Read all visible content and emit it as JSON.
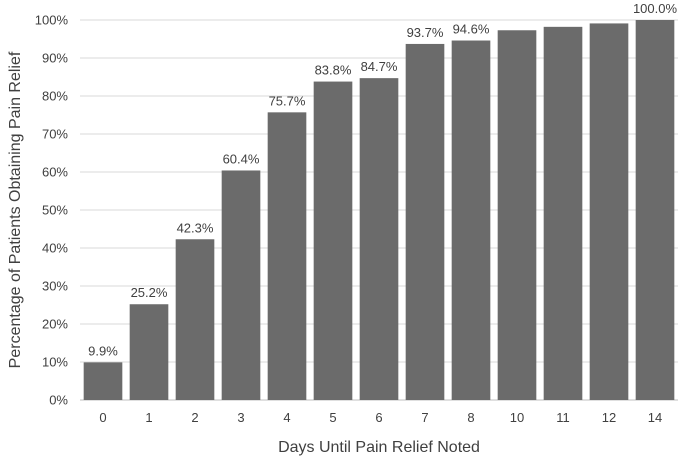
{
  "chart_data": {
    "type": "bar",
    "xlabel": "Days Until Pain Relief Noted",
    "ylabel": "Percentage of Patients Obtaining Pain Relief",
    "categories": [
      "0",
      "1",
      "2",
      "3",
      "4",
      "5",
      "6",
      "7",
      "8",
      "10",
      "11",
      "12",
      "14"
    ],
    "values": [
      9.9,
      25.2,
      42.3,
      60.4,
      75.7,
      83.8,
      84.7,
      93.7,
      94.6,
      97.3,
      98.2,
      99.1,
      100.0
    ],
    "data_labels": [
      "9.9%",
      "25.2%",
      "42.3%",
      "60.4%",
      "75.7%",
      "83.8%",
      "84.7%",
      "93.7%",
      "94.6%",
      "",
      "",
      "",
      "100.0%"
    ],
    "ylim": [
      0,
      100
    ],
    "yticks": [
      "0%",
      "10%",
      "20%",
      "30%",
      "40%",
      "50%",
      "60%",
      "70%",
      "80%",
      "90%",
      "100%"
    ],
    "grid": true,
    "bar_color": "#6b6b6b",
    "grid_color": "#d9d9d9"
  }
}
